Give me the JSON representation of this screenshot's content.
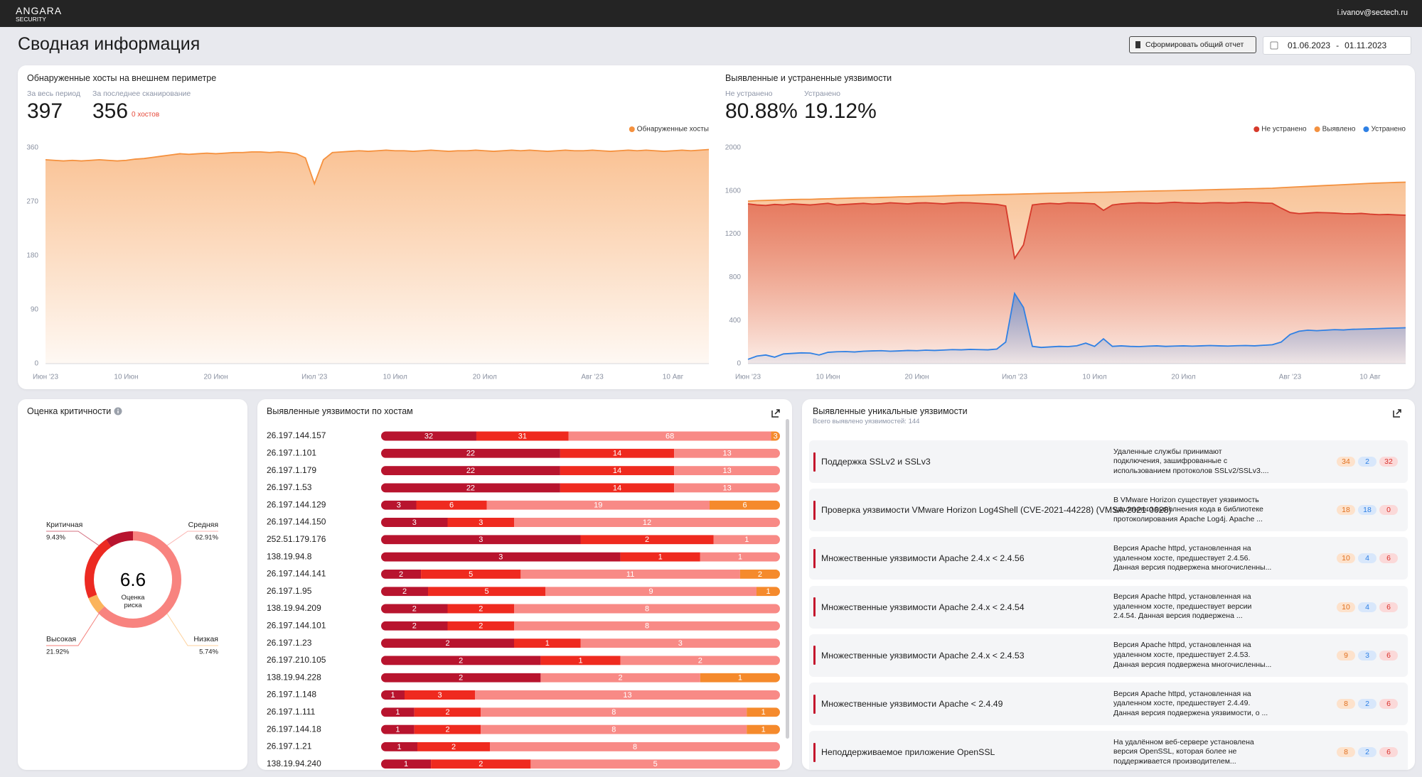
{
  "header": {
    "logo": "ANGARA",
    "logo_sub": "SECURITY",
    "user": "i.ivanov@sectech.ru"
  },
  "page": {
    "title": "Сводная информация",
    "report_button": "Сформировать общий отчет",
    "date_from": "01.06.2023",
    "date_sep": "-",
    "date_to": "01.11.2023"
  },
  "hosts_kpis": [
    {
      "label": "За весь период",
      "value": 397
    },
    {
      "label": "За последнее сканирование",
      "value": 356,
      "note": "0 хостов"
    }
  ],
  "vulns_kpis": [
    {
      "label": "Не устранено",
      "value": "80.88%"
    },
    {
      "label": "Устранено",
      "value": "19.12%"
    }
  ],
  "chart_data": [
    {
      "type": "area",
      "title": "Обнаруженные хосты на внешнем периметре",
      "categories": [
        "Июн '23",
        null,
        null,
        null,
        null,
        null,
        null,
        null,
        null,
        "10 Июн",
        null,
        null,
        null,
        null,
        null,
        null,
        null,
        null,
        null,
        "20 Июн",
        null,
        null,
        null,
        null,
        null,
        null,
        null,
        null,
        null,
        null,
        "Июл '23",
        null,
        null,
        null,
        null,
        null,
        null,
        null,
        null,
        "10 Июл",
        null,
        null,
        null,
        null,
        null,
        null,
        null,
        null,
        null,
        "20 Июл",
        null,
        null,
        null,
        null,
        null,
        null,
        null,
        null,
        null,
        null,
        null,
        "Авг '23",
        null,
        null,
        null,
        null,
        null,
        null,
        null,
        null,
        "10 Авг",
        null,
        null,
        null,
        null
      ],
      "series": [
        {
          "name": "Обнаруженные хосты",
          "color": "#f5913e",
          "values": [
            340,
            339,
            338,
            339,
            338,
            339,
            340,
            339,
            338,
            339,
            341,
            342,
            344,
            346,
            348,
            350,
            349,
            350,
            351,
            350,
            351,
            352,
            352,
            353,
            353,
            352,
            353,
            352,
            350,
            343,
            300,
            340,
            352,
            353,
            354,
            355,
            354,
            355,
            356,
            355,
            355,
            354,
            355,
            356,
            355,
            354,
            355,
            355,
            356,
            355,
            354,
            355,
            356,
            355,
            356,
            355,
            354,
            355,
            356,
            355,
            355,
            356,
            355,
            354,
            355,
            356,
            355,
            356,
            355,
            354,
            355,
            356,
            355,
            356,
            357
          ]
        }
      ],
      "ylim": [
        0,
        360
      ],
      "yticks": [
        0,
        90,
        180,
        270,
        360
      ],
      "grid": false,
      "legend": "top-right"
    },
    {
      "type": "area",
      "title": "Выявленные и устраненные уязвимости",
      "categories": [
        "Июн '23",
        null,
        null,
        null,
        null,
        null,
        null,
        null,
        null,
        "10 Июн",
        null,
        null,
        null,
        null,
        null,
        null,
        null,
        null,
        null,
        "20 Июн",
        null,
        null,
        null,
        null,
        null,
        null,
        null,
        null,
        null,
        null,
        "Июл '23",
        null,
        null,
        null,
        null,
        null,
        null,
        null,
        null,
        "10 Июл",
        null,
        null,
        null,
        null,
        null,
        null,
        null,
        null,
        null,
        "20 Июл",
        null,
        null,
        null,
        null,
        null,
        null,
        null,
        null,
        null,
        null,
        null,
        "Авг '23",
        null,
        null,
        null,
        null,
        null,
        null,
        null,
        null,
        "10 Авг",
        null,
        null,
        null,
        null
      ],
      "series": [
        {
          "name": "Не устранено",
          "color": "#d63a2b",
          "values": [
            1480,
            1470,
            1465,
            1475,
            1470,
            1480,
            1475,
            1470,
            1478,
            1485,
            1470,
            1475,
            1480,
            1485,
            1478,
            1482,
            1490,
            1485,
            1480,
            1488,
            1490,
            1485,
            1480,
            1488,
            1492,
            1490,
            1485,
            1480,
            1475,
            1460,
            975,
            1100,
            1470,
            1480,
            1485,
            1480,
            1490,
            1488,
            1485,
            1480,
            1420,
            1470,
            1480,
            1485,
            1490,
            1488,
            1485,
            1490,
            1495,
            1490,
            1488,
            1485,
            1490,
            1492,
            1488,
            1490,
            1495,
            1492,
            1488,
            1485,
            1440,
            1400,
            1390,
            1395,
            1400,
            1398,
            1395,
            1390,
            1388,
            1392,
            1385,
            1380,
            1382,
            1378,
            1375
          ]
        },
        {
          "name": "Выявлено",
          "color": "#f39140",
          "values": [
            1505,
            1510,
            1512,
            1515,
            1518,
            1520,
            1522,
            1522,
            1525,
            1527,
            1530,
            1532,
            1535,
            1536,
            1538,
            1540,
            1542,
            1545,
            1547,
            1548,
            1550,
            1552,
            1555,
            1557,
            1560,
            1561,
            1563,
            1565,
            1567,
            1568,
            1570,
            1572,
            1574,
            1576,
            1578,
            1580,
            1581,
            1583,
            1585,
            1587,
            1588,
            1590,
            1592,
            1594,
            1596,
            1598,
            1600,
            1601,
            1603,
            1605,
            1607,
            1609,
            1611,
            1613,
            1615,
            1617,
            1619,
            1621,
            1623,
            1625,
            1630,
            1634,
            1638,
            1642,
            1646,
            1650,
            1654,
            1658,
            1662,
            1666,
            1670,
            1673,
            1676,
            1679,
            1681
          ]
        },
        {
          "name": "Устранено",
          "color": "#2f80e4",
          "values": [
            40,
            70,
            80,
            60,
            90,
            95,
            100,
            98,
            80,
            105,
            110,
            112,
            108,
            115,
            118,
            120,
            115,
            118,
            122,
            120,
            125,
            122,
            126,
            130,
            128,
            132,
            130,
            128,
            135,
            200,
            650,
            520,
            160,
            150,
            155,
            160,
            158,
            165,
            190,
            160,
            230,
            160,
            165,
            160,
            158,
            162,
            165,
            160,
            163,
            165,
            162,
            165,
            168,
            165,
            163,
            166,
            168,
            165,
            170,
            175,
            200,
            270,
            300,
            310,
            305,
            310,
            315,
            312,
            318,
            320,
            322,
            325,
            328,
            330,
            332
          ]
        }
      ],
      "ylim": [
        0,
        2000
      ],
      "yticks": [
        0,
        400,
        800,
        1200,
        1600,
        2000
      ],
      "grid": false,
      "legend": "top-right"
    },
    {
      "type": "donut",
      "title": "Оценка критичности",
      "categories": [
        "Средняя",
        "Низкая",
        "Высокая",
        "Критичная"
      ],
      "values": [
        62.91,
        5.74,
        21.92,
        9.43
      ],
      "value_labels": [
        "62.91%",
        "5.74%",
        "21.92%",
        "9.43%"
      ],
      "colors": [
        "#f8837f",
        "#fbb45c",
        "#ec2a22",
        "#b8142e"
      ],
      "center_value": 6.6,
      "center_label": "Оценка риска"
    },
    {
      "type": "bar",
      "orientation": "horizontal",
      "stacked": "percent",
      "title": "Выявленные уязвимости по хостам",
      "categories": [
        "26.197.144.157",
        "26.197.1.101",
        "26.197.1.179",
        "26.197.1.53",
        "26.197.144.129",
        "26.197.144.150",
        "252.51.179.176",
        "138.19.94.8",
        "26.197.144.141",
        "26.197.1.95",
        "138.19.94.209",
        "26.197.144.101",
        "26.197.1.23",
        "26.197.210.105",
        "138.19.94.228",
        "26.197.1.148",
        "26.197.1.111",
        "26.197.144.18",
        "26.197.1.21",
        "138.19.94.240"
      ],
      "series": [
        {
          "color": "#b8142e",
          "values": [
            32,
            22,
            22,
            22,
            3,
            3,
            3,
            3,
            2,
            2,
            2,
            2,
            2,
            2,
            2,
            1,
            1,
            1,
            1,
            1
          ]
        },
        {
          "color": "#ef2a1f",
          "values": [
            31,
            14,
            14,
            14,
            6,
            3,
            2,
            1,
            5,
            5,
            2,
            2,
            1,
            1,
            null,
            3,
            2,
            2,
            2,
            2
          ]
        },
        {
          "color": "#f88a86",
          "values": [
            68,
            13,
            13,
            13,
            19,
            12,
            1,
            1,
            11,
            9,
            8,
            8,
            3,
            2,
            2,
            13,
            8,
            8,
            8,
            5
          ]
        },
        {
          "color": "#f58a2c",
          "values": [
            3,
            null,
            null,
            null,
            6,
            null,
            null,
            null,
            2,
            1,
            null,
            null,
            null,
            null,
            1,
            null,
            1,
            1,
            null,
            null
          ]
        }
      ]
    }
  ],
  "unique_vulns": {
    "title": "Выявленные уникальные уязвимости",
    "subtitle": "Всего выявлено уязвимостей: 144",
    "items": [
      {
        "title": "Поддержка SSLv2 и SSLv3",
        "description": [
          "Удаленные службы принимают",
          "подключения, зашифрованные с",
          "использованием протоколов SSLv2/SSLv3...."
        ],
        "counts": [
          34,
          2,
          32
        ]
      },
      {
        "title": "Проверка уязвимости VMware Horizon Log4Shell (CVE-2021-44228) (VMSA-2021-0028)",
        "description": [
          "В VMware Horizon существует уязвимость",
          "удаленного выполнения кода в библиотеке",
          "протоколирования Apache Log4j. Apache ..."
        ],
        "counts": [
          18,
          18,
          0
        ]
      },
      {
        "title": "Множественные уязвимости Apache 2.4.x < 2.4.56",
        "description": [
          "Версия Apache httpd, установленная на",
          "удаленном хосте, предшествует 2.4.56.",
          "Данная версия подвержена многочисленны..."
        ],
        "counts": [
          10,
          4,
          6
        ]
      },
      {
        "title": "Множественные уязвимости Apache 2.4.x < 2.4.54",
        "description": [
          "Версия Apache httpd, установленная на",
          "удаленном хосте, предшествует версии",
          "2.4.54. Данная версия подвержена ..."
        ],
        "counts": [
          10,
          4,
          6
        ]
      },
      {
        "title": "Множественные уязвимости Apache 2.4.x < 2.4.53",
        "description": [
          "Версия Apache httpd, установленная на",
          "удаленном хосте, предшествует 2.4.53.",
          "Данная версия подвержена многочисленны..."
        ],
        "counts": [
          9,
          3,
          6
        ]
      },
      {
        "title": "Множественные уязвимости Apache < 2.4.49",
        "description": [
          "Версия Apache httpd, установленная на",
          "удаленном хосте, предшествует 2.4.49.",
          "Данная версия подвержена уязвимости, о ..."
        ],
        "counts": [
          8,
          2,
          6
        ]
      },
      {
        "title": "Неподдерживаемое приложение OpenSSL",
        "description": [
          "На удалённом веб-сервере установлена",
          "версия OpenSSL, которая более не",
          "поддерживается производителем..."
        ],
        "counts": [
          8,
          2,
          6
        ]
      }
    ]
  }
}
